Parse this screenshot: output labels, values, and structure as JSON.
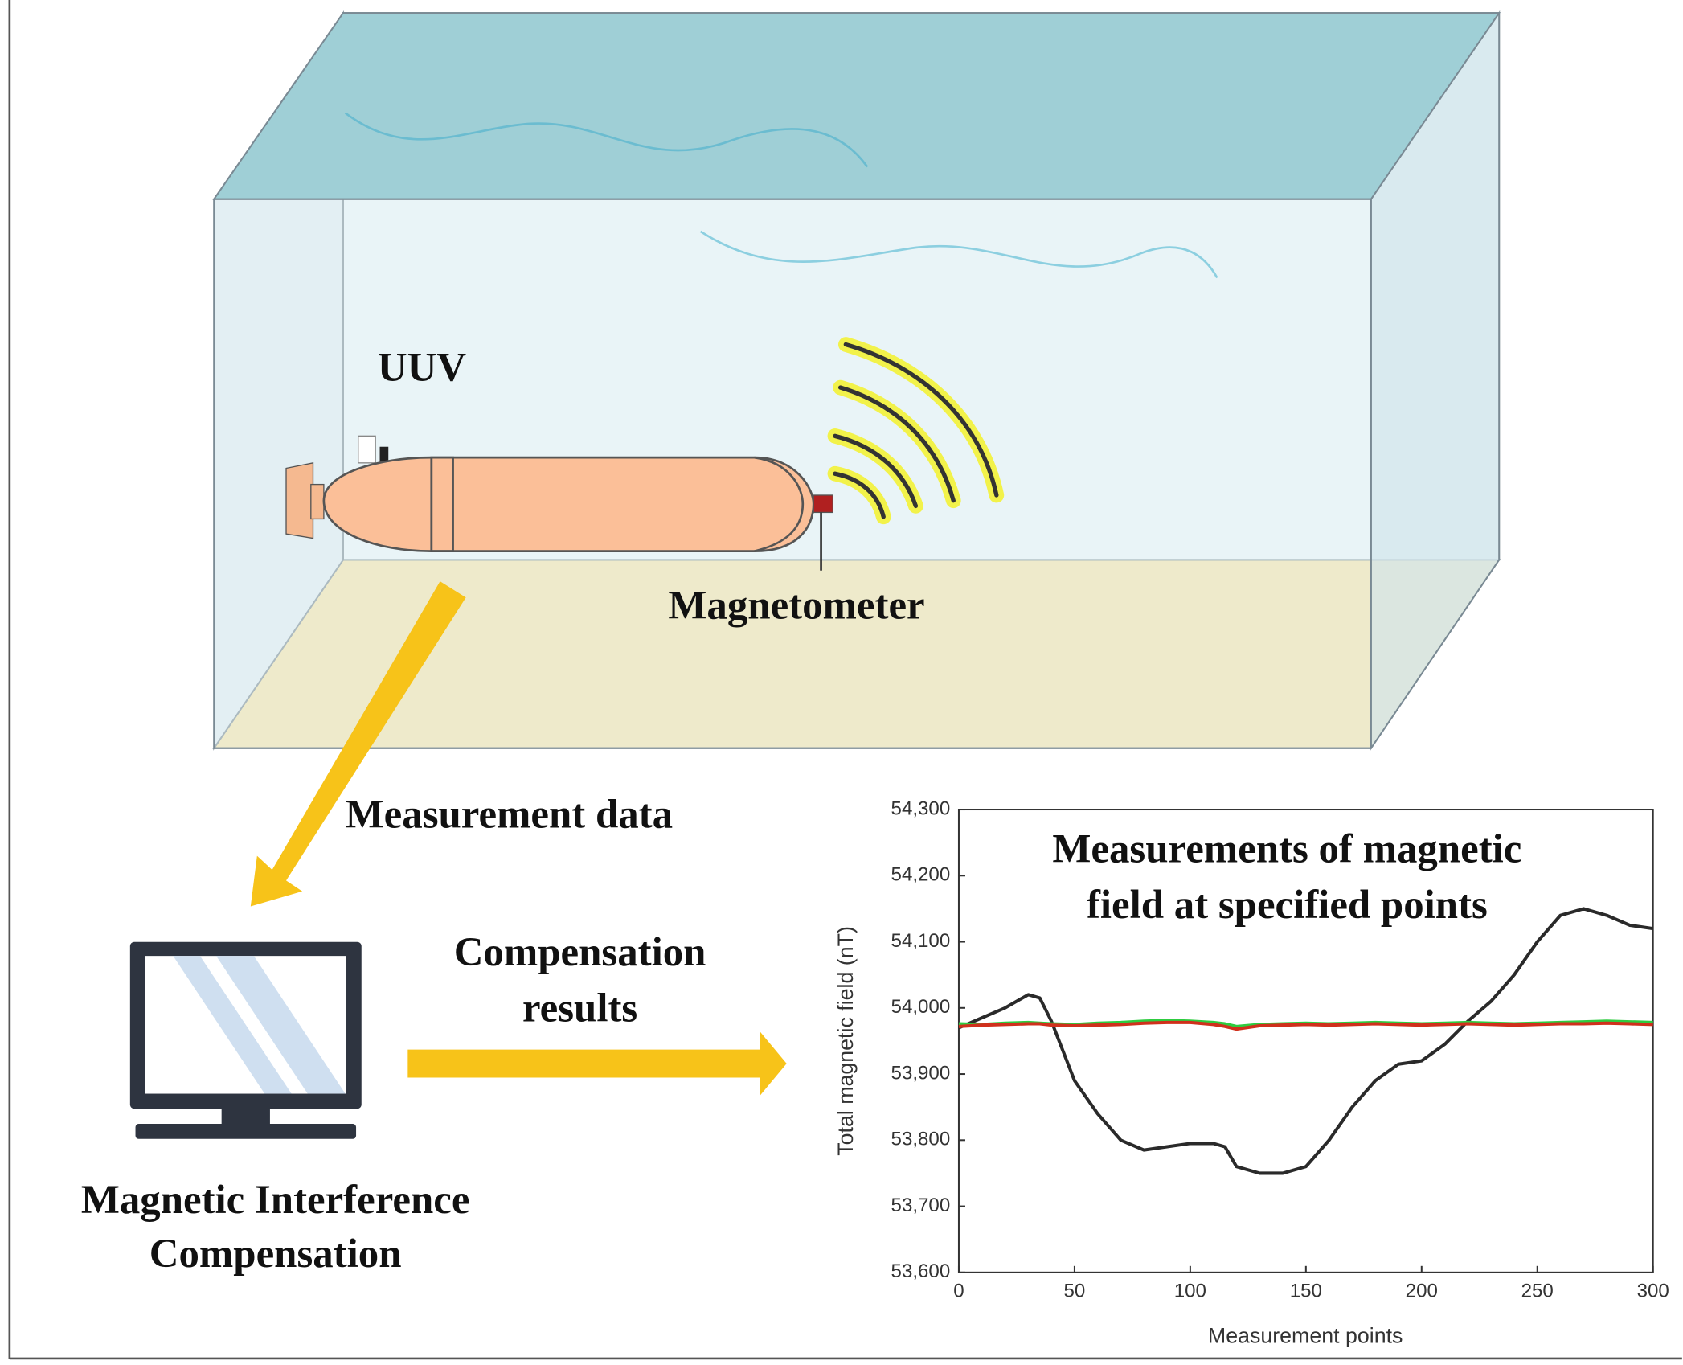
{
  "labels": {
    "uuv": "UUV",
    "magnetometer": "Magnetometer",
    "measurement_data": "Measurement data",
    "compensation_results": [
      "Compensation",
      "results"
    ],
    "compensation_module": [
      "Magnetic Interference",
      "Compensation"
    ]
  },
  "chart_data": {
    "type": "line",
    "title": [
      "Measurements of magnetic",
      "field at specified points"
    ],
    "x_label": "Measurement points",
    "y_label": "Total magnetic field (nT)",
    "x": [
      0,
      10,
      20,
      30,
      35,
      40,
      50,
      60,
      70,
      80,
      90,
      100,
      110,
      115,
      120,
      130,
      140,
      150,
      160,
      170,
      180,
      190,
      200,
      210,
      220,
      230,
      240,
      250,
      260,
      270,
      280,
      290,
      300
    ],
    "series": [
      {
        "color": "#2a2a2a",
        "values": [
          53970,
          53985,
          54000,
          54020,
          54015,
          53980,
          53890,
          53840,
          53800,
          53785,
          53790,
          53795,
          53795,
          53790,
          53760,
          53750,
          53750,
          53760,
          53800,
          53850,
          53890,
          53915,
          53920,
          53945,
          53980,
          54010,
          54050,
          54100,
          54140,
          54150,
          54140,
          54125,
          54120
        ]
      },
      {
        "color": "#2ecc40",
        "values": [
          53976,
          53975,
          53977,
          53978,
          53977,
          53976,
          53975,
          53977,
          53978,
          53980,
          53981,
          53980,
          53978,
          53976,
          53972,
          53975,
          53976,
          53977,
          53976,
          53977,
          53978,
          53977,
          53976,
          53977,
          53978,
          53977,
          53976,
          53977,
          53978,
          53979,
          53980,
          53979,
          53978
        ]
      },
      {
        "color": "#d0301c",
        "values": [
          53972,
          53974,
          53975,
          53976,
          53976,
          53974,
          53973,
          53974,
          53975,
          53977,
          53978,
          53978,
          53975,
          53972,
          53968,
          53973,
          53974,
          53975,
          53974,
          53975,
          53976,
          53975,
          53974,
          53975,
          53976,
          53975,
          53974,
          53975,
          53976,
          53976,
          53977,
          53976,
          53975
        ]
      }
    ],
    "xlim": [
      0,
      300
    ],
    "ylim": [
      53600,
      54300
    ],
    "xticks": [
      0,
      50,
      100,
      150,
      200,
      250,
      300
    ],
    "yticks": [
      {
        "value": 53600,
        "label": "53,600"
      },
      {
        "value": 53700,
        "label": "53,700"
      },
      {
        "value": 53800,
        "label": "53,800"
      },
      {
        "value": 53900,
        "label": "53,900"
      },
      {
        "value": 54000,
        "label": "54,000"
      },
      {
        "value": 54100,
        "label": "54,100"
      },
      {
        "value": 54200,
        "label": "54,200"
      },
      {
        "value": 54300,
        "label": "54,300"
      }
    ]
  }
}
